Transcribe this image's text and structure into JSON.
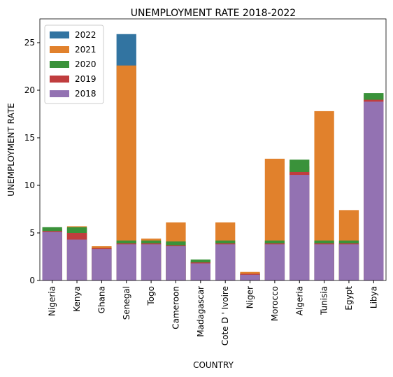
{
  "chart_data": {
    "type": "bar",
    "title": "UNEMPLOYMENT RATE 2018-2022",
    "x_label": "COUNTRY",
    "y_label": "UNEMPLOYMENT RATE",
    "categories": [
      "Nigeria",
      "Kenya",
      "Ghana",
      "Senegal",
      "Togo",
      "Cameroon",
      "Madagascar",
      "Cote D ' Ivoire",
      "Niger",
      "Morocco",
      "Algeria",
      "Tunisia",
      "Egypt",
      "Libya"
    ],
    "series": [
      {
        "name": "2022",
        "color": "#3274a1",
        "values": [
          5.4,
          5.5,
          3.5,
          25.9,
          4.0,
          3.5,
          2.0,
          3.5,
          0.8,
          4.0,
          12.0,
          4.0,
          4.0,
          19.5
        ]
      },
      {
        "name": "2021",
        "color": "#e1812c",
        "values": [
          5.4,
          5.7,
          3.6,
          22.6,
          4.4,
          6.1,
          2.0,
          6.1,
          0.9,
          12.8,
          12.0,
          17.8,
          7.4,
          19.5
        ]
      },
      {
        "name": "2020",
        "color": "#3a923a",
        "values": [
          5.6,
          5.6,
          3.4,
          4.2,
          4.2,
          4.1,
          2.2,
          4.2,
          0.7,
          4.2,
          12.7,
          4.2,
          4.2,
          19.7
        ]
      },
      {
        "name": "2019",
        "color": "#c03d3e",
        "values": [
          5.2,
          5.0,
          3.4,
          3.9,
          3.9,
          3.7,
          1.9,
          3.9,
          0.7,
          3.9,
          11.4,
          3.9,
          3.9,
          19.0
        ]
      },
      {
        "name": "2018",
        "color": "#9372b2",
        "values": [
          5.1,
          4.3,
          3.3,
          3.8,
          3.8,
          3.6,
          1.8,
          3.8,
          0.6,
          3.8,
          11.1,
          3.8,
          3.8,
          18.8
        ]
      }
    ],
    "ylim": [
      0,
      27.5
    ],
    "yticks": [
      0,
      5,
      10,
      15,
      20,
      25
    ],
    "legend": "upper-left",
    "overlap": true
  }
}
